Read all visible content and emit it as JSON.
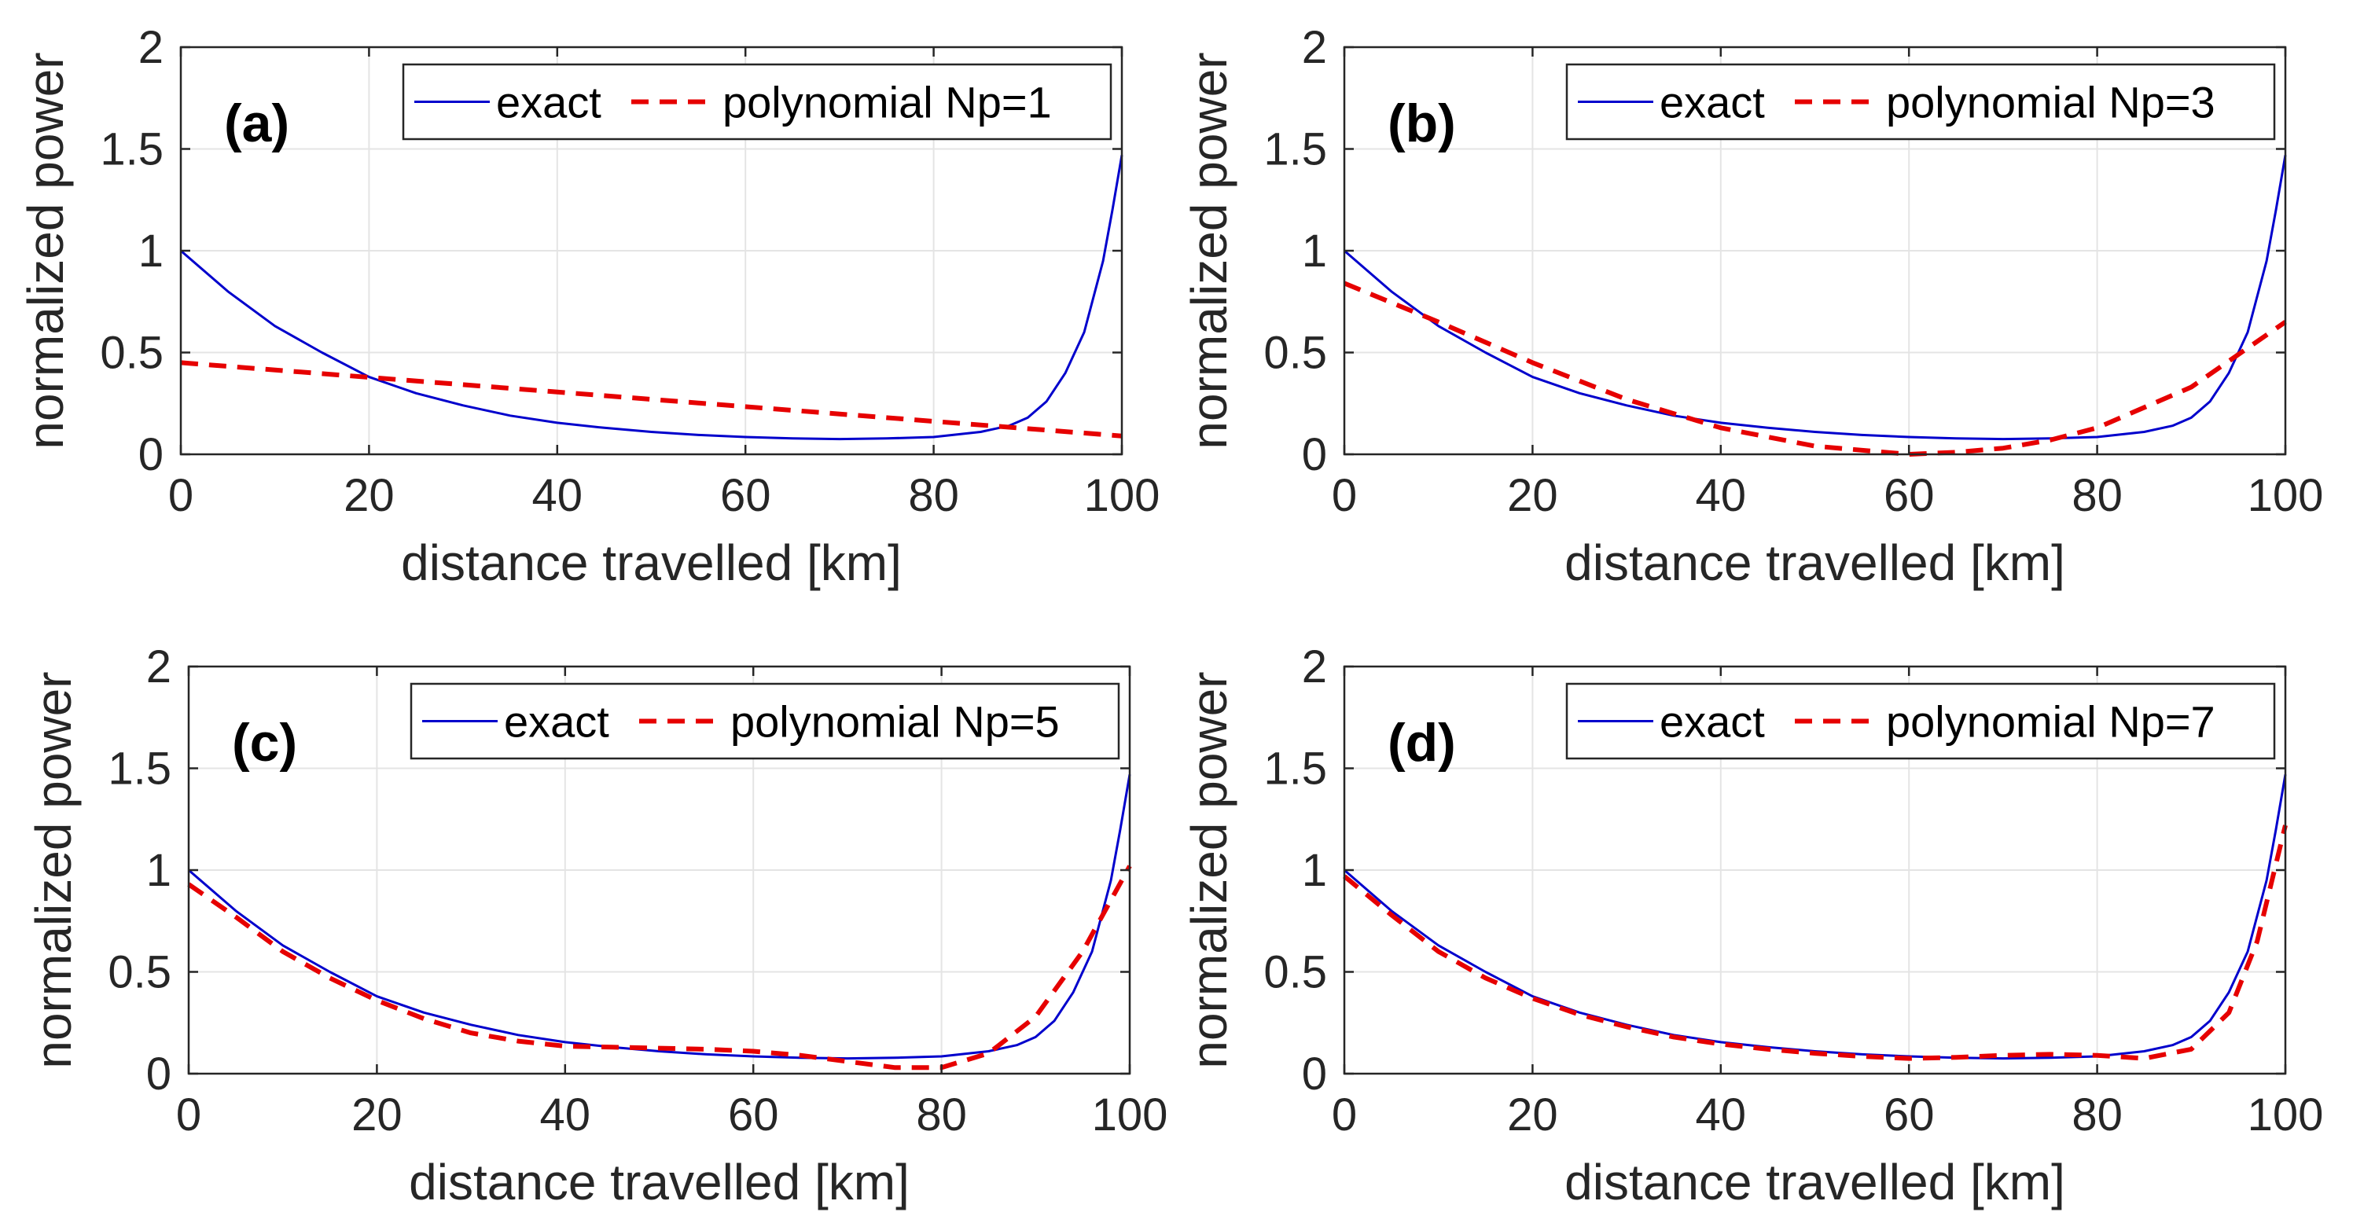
{
  "chart_data": [
    {
      "type": "line",
      "panel_label": "(a)",
      "xlabel": "distance travelled [km]",
      "ylabel": "normalized power",
      "xlim": [
        0,
        100
      ],
      "ylim": [
        0,
        2
      ],
      "xticks": [
        "0",
        "20",
        "40",
        "60",
        "80",
        "100"
      ],
      "yticks": [
        "0",
        "0.5",
        "1",
        "1.5",
        "2"
      ],
      "grid": true,
      "legend_position": "top-right",
      "series": [
        {
          "name": "exact",
          "style": "solid",
          "color": "#0000cc",
          "x": [
            0,
            5,
            10,
            15,
            20,
            25,
            30,
            35,
            40,
            45,
            50,
            55,
            60,
            65,
            70,
            75,
            80,
            85,
            88,
            90,
            92,
            94,
            96,
            98,
            99,
            100
          ],
          "y": [
            1.0,
            0.8,
            0.63,
            0.5,
            0.38,
            0.3,
            0.24,
            0.19,
            0.155,
            0.13,
            0.11,
            0.095,
            0.085,
            0.078,
            0.075,
            0.078,
            0.085,
            0.11,
            0.14,
            0.18,
            0.26,
            0.4,
            0.6,
            0.95,
            1.2,
            1.47
          ]
        },
        {
          "name": "polynomial Np=1",
          "style": "dashed",
          "color": "#e60000",
          "x": [
            0,
            100
          ],
          "y": [
            0.45,
            0.09
          ]
        }
      ]
    },
    {
      "type": "line",
      "panel_label": "(b)",
      "xlabel": "distance travelled [km]",
      "ylabel": "normalized power",
      "xlim": [
        0,
        100
      ],
      "ylim": [
        0,
        2
      ],
      "xticks": [
        "0",
        "20",
        "40",
        "60",
        "80",
        "100"
      ],
      "yticks": [
        "0",
        "0.5",
        "1",
        "1.5",
        "2"
      ],
      "grid": true,
      "legend_position": "top-right",
      "series": [
        {
          "name": "exact",
          "style": "solid",
          "color": "#0000cc",
          "x": [
            0,
            5,
            10,
            15,
            20,
            25,
            30,
            35,
            40,
            45,
            50,
            55,
            60,
            65,
            70,
            75,
            80,
            85,
            88,
            90,
            92,
            94,
            96,
            98,
            99,
            100
          ],
          "y": [
            1.0,
            0.8,
            0.63,
            0.5,
            0.38,
            0.3,
            0.24,
            0.19,
            0.155,
            0.13,
            0.11,
            0.095,
            0.085,
            0.078,
            0.075,
            0.078,
            0.085,
            0.11,
            0.14,
            0.18,
            0.26,
            0.4,
            0.6,
            0.95,
            1.2,
            1.47
          ]
        },
        {
          "name": "polynomial Np=3",
          "style": "dashed",
          "color": "#e60000",
          "x": [
            0,
            10,
            20,
            30,
            40,
            50,
            60,
            65,
            70,
            75,
            80,
            90,
            100
          ],
          "y": [
            0.84,
            0.65,
            0.45,
            0.27,
            0.13,
            0.04,
            0.0,
            0.01,
            0.03,
            0.07,
            0.13,
            0.33,
            0.65
          ]
        }
      ]
    },
    {
      "type": "line",
      "panel_label": "(c)",
      "xlabel": "distance travelled [km]",
      "ylabel": "normalized power",
      "xlim": [
        0,
        100
      ],
      "ylim": [
        0,
        2
      ],
      "xticks": [
        "0",
        "20",
        "40",
        "60",
        "80",
        "100"
      ],
      "yticks": [
        "0",
        "0.5",
        "1",
        "1.5",
        "2"
      ],
      "grid": true,
      "legend_position": "top-right",
      "series": [
        {
          "name": "exact",
          "style": "solid",
          "color": "#0000cc",
          "x": [
            0,
            5,
            10,
            15,
            20,
            25,
            30,
            35,
            40,
            45,
            50,
            55,
            60,
            65,
            70,
            75,
            80,
            85,
            88,
            90,
            92,
            94,
            96,
            98,
            99,
            100
          ],
          "y": [
            1.0,
            0.8,
            0.63,
            0.5,
            0.38,
            0.3,
            0.24,
            0.19,
            0.155,
            0.13,
            0.11,
            0.095,
            0.085,
            0.078,
            0.075,
            0.078,
            0.085,
            0.11,
            0.14,
            0.18,
            0.26,
            0.4,
            0.6,
            0.95,
            1.2,
            1.47
          ]
        },
        {
          "name": "polynomial Np=5",
          "style": "dashed",
          "color": "#e60000",
          "x": [
            0,
            5,
            10,
            15,
            20,
            25,
            30,
            35,
            40,
            45,
            50,
            55,
            60,
            65,
            70,
            75,
            80,
            85,
            90,
            95,
            100
          ],
          "y": [
            0.93,
            0.77,
            0.6,
            0.47,
            0.36,
            0.27,
            0.2,
            0.16,
            0.135,
            0.13,
            0.125,
            0.12,
            0.11,
            0.09,
            0.06,
            0.03,
            0.03,
            0.1,
            0.28,
            0.6,
            1.02
          ]
        }
      ]
    },
    {
      "type": "line",
      "panel_label": "(d)",
      "xlabel": "distance travelled [km]",
      "ylabel": "normalized power",
      "xlim": [
        0,
        100
      ],
      "ylim": [
        0,
        2
      ],
      "xticks": [
        "0",
        "20",
        "40",
        "60",
        "80",
        "100"
      ],
      "yticks": [
        "0",
        "0.5",
        "1",
        "1.5",
        "2"
      ],
      "grid": true,
      "legend_position": "top-right",
      "series": [
        {
          "name": "exact",
          "style": "solid",
          "color": "#0000cc",
          "x": [
            0,
            5,
            10,
            15,
            20,
            25,
            30,
            35,
            40,
            45,
            50,
            55,
            60,
            65,
            70,
            75,
            80,
            85,
            88,
            90,
            92,
            94,
            96,
            98,
            99,
            100
          ],
          "y": [
            1.0,
            0.8,
            0.63,
            0.5,
            0.38,
            0.3,
            0.24,
            0.19,
            0.155,
            0.13,
            0.11,
            0.095,
            0.085,
            0.078,
            0.075,
            0.078,
            0.085,
            0.11,
            0.14,
            0.18,
            0.26,
            0.4,
            0.6,
            0.95,
            1.2,
            1.47
          ]
        },
        {
          "name": "polynomial Np=7",
          "style": "dashed",
          "color": "#e60000",
          "x": [
            0,
            5,
            10,
            15,
            20,
            25,
            30,
            35,
            40,
            45,
            50,
            55,
            60,
            65,
            70,
            75,
            80,
            85,
            90,
            94,
            97,
            100
          ],
          "y": [
            0.97,
            0.78,
            0.6,
            0.47,
            0.37,
            0.29,
            0.23,
            0.18,
            0.145,
            0.12,
            0.1,
            0.085,
            0.075,
            0.08,
            0.09,
            0.095,
            0.09,
            0.075,
            0.12,
            0.3,
            0.65,
            1.22
          ]
        }
      ]
    }
  ]
}
